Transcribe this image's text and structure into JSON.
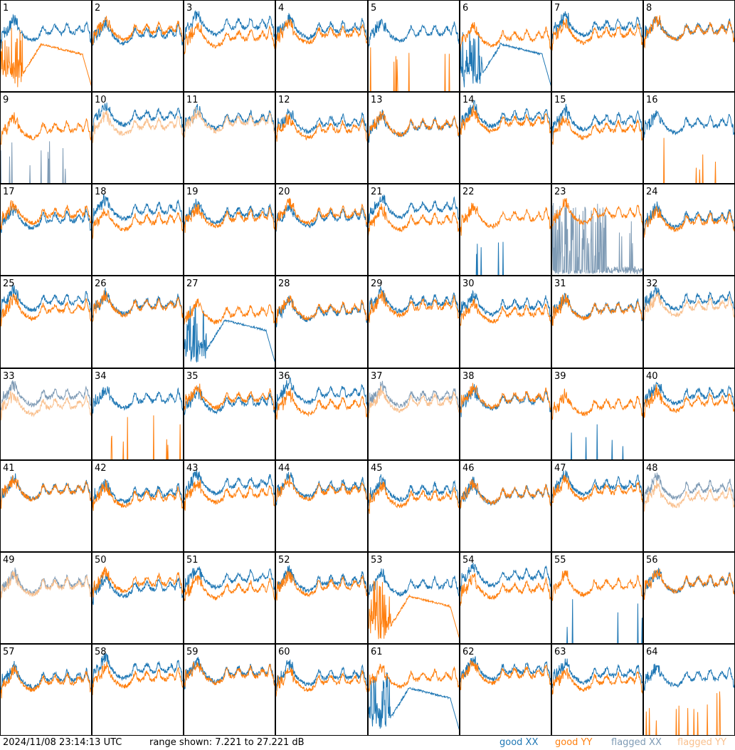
{
  "chart_data": {
    "type": "line",
    "layout": "8x8 small multiples",
    "panels": [
      "1",
      "2",
      "3",
      "4",
      "5",
      "6",
      "7",
      "8",
      "9",
      "10",
      "11",
      "12",
      "13",
      "14",
      "15",
      "16",
      "17",
      "18",
      "19",
      "20",
      "21",
      "22",
      "23",
      "24",
      "25",
      "26",
      "27",
      "28",
      "29",
      "30",
      "31",
      "32",
      "33",
      "34",
      "35",
      "36",
      "37",
      "38",
      "39",
      "40",
      "41",
      "42",
      "43",
      "44",
      "45",
      "46",
      "47",
      "48",
      "49",
      "50",
      "51",
      "52",
      "53",
      "54",
      "55",
      "56",
      "57",
      "58",
      "59",
      "60",
      "61",
      "62",
      "63",
      "64"
    ],
    "series": [
      {
        "name": "good XX",
        "color": "#1f77b4"
      },
      {
        "name": "good YY",
        "color": "#ff7f0e"
      },
      {
        "name": "flagged XX",
        "color": "#7f9bb5"
      },
      {
        "name": "flagged YY",
        "color": "#f9c08e"
      }
    ],
    "ylim": [
      7.221,
      27.221
    ],
    "panel_behavior": {
      "flagged_both": [
        "33",
        "37",
        "48",
        "49"
      ],
      "flagged_yy": [
        "10",
        "11",
        "32"
      ],
      "flagged_xx": [
        "9",
        "23"
      ],
      "xx_sparse_spikes": [
        "22",
        "39",
        "55"
      ],
      "yy_sparse_spikes": [
        "5",
        "16",
        "34",
        "64"
      ],
      "xx_deep_dip": [
        "6",
        "27",
        "61"
      ],
      "yy_deep_dip": [
        "1",
        "53"
      ]
    }
  },
  "footer": {
    "timestamp": "2024/11/08 23:14:13 UTC",
    "range_text": "range shown: 7.221 to 27.221 dB",
    "legend": [
      {
        "label": "good XX",
        "color": "#1f77b4"
      },
      {
        "label": "good YY",
        "color": "#ff7f0e"
      },
      {
        "label": "flagged XX",
        "color": "#7f9bb5"
      },
      {
        "label": "flagged YY",
        "color": "#f9c08e"
      }
    ]
  }
}
